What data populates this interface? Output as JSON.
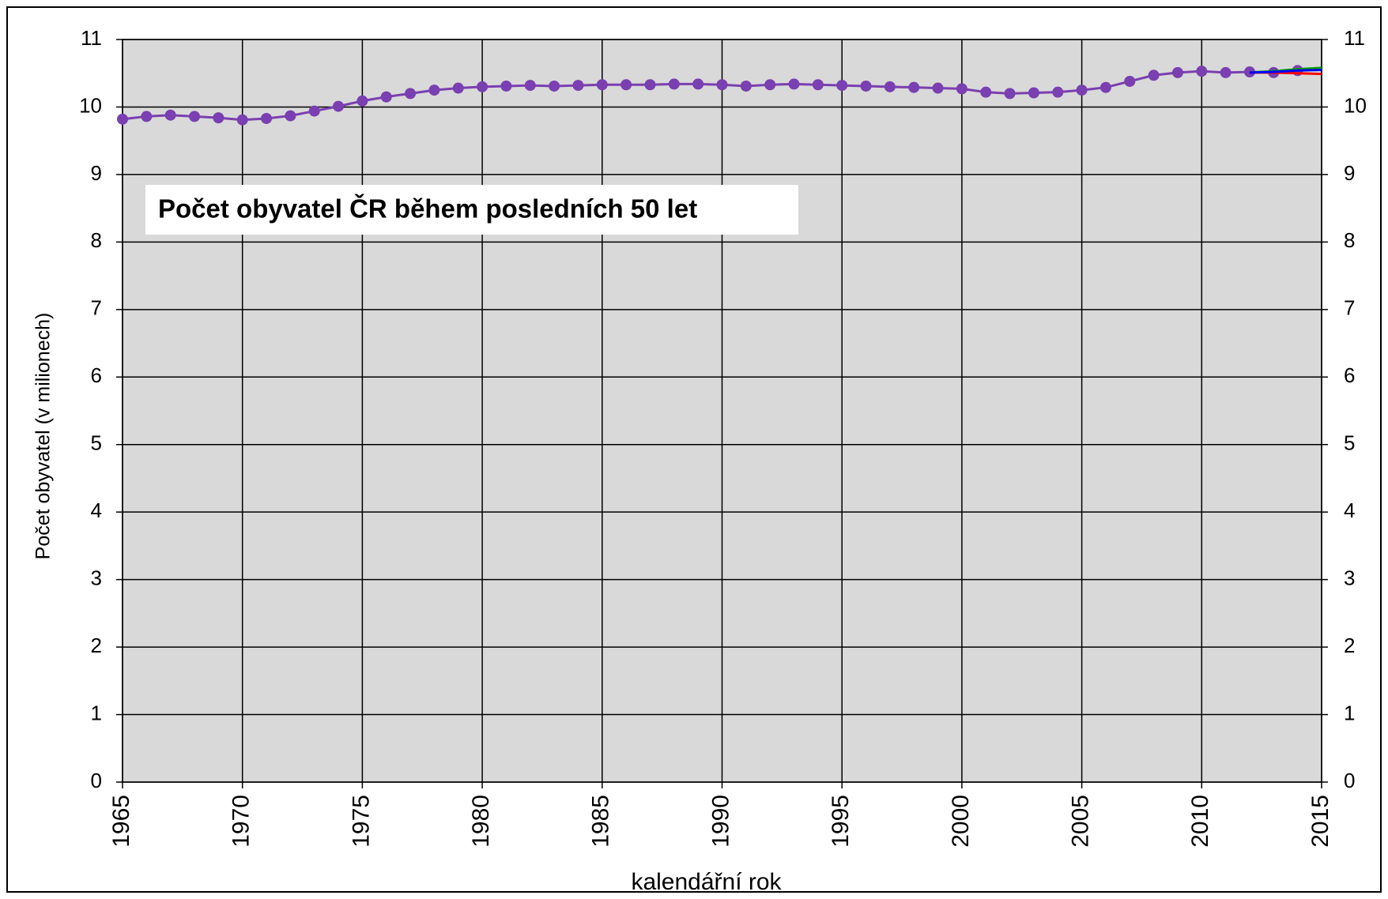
{
  "chart_data": {
    "type": "line",
    "title": "Počet obyvatel ČR během posledních 50 let",
    "x_label": "kalendářní rok",
    "y_label": "Počet obyvatel  (v milionech)",
    "series": [
      {
        "color": "#7a3fb0",
        "markers": true,
        "x": [
          1965,
          1966,
          1967,
          1968,
          1969,
          1970,
          1971,
          1972,
          1973,
          1974,
          1975,
          1976,
          1977,
          1978,
          1979,
          1980,
          1981,
          1982,
          1983,
          1984,
          1985,
          1986,
          1987,
          1988,
          1989,
          1990,
          1991,
          1992,
          1993,
          1994,
          1995,
          1996,
          1997,
          1998,
          1999,
          2000,
          2001,
          2002,
          2003,
          2004,
          2005,
          2006,
          2007,
          2008,
          2009,
          2010,
          2011,
          2012,
          2013,
          2014
        ],
        "values": [
          9.82,
          9.86,
          9.88,
          9.86,
          9.84,
          9.81,
          9.83,
          9.87,
          9.94,
          10.01,
          10.09,
          10.15,
          10.2,
          10.25,
          10.28,
          10.3,
          10.31,
          10.32,
          10.31,
          10.32,
          10.33,
          10.33,
          10.33,
          10.34,
          10.34,
          10.33,
          10.31,
          10.33,
          10.34,
          10.33,
          10.32,
          10.31,
          10.3,
          10.29,
          10.28,
          10.27,
          10.22,
          10.2,
          10.21,
          10.22,
          10.25,
          10.29,
          10.38,
          10.47,
          10.51,
          10.53,
          10.51,
          10.52,
          10.51,
          10.54
        ]
      },
      {
        "color": "#ff0000",
        "markers": false,
        "x": [
          2012,
          2013,
          2014,
          2015
        ],
        "values": [
          10.51,
          10.51,
          10.5,
          10.49
        ]
      },
      {
        "color": "#00a000",
        "markers": false,
        "x": [
          2012,
          2013,
          2014,
          2015
        ],
        "values": [
          10.51,
          10.53,
          10.56,
          10.58
        ]
      },
      {
        "color": "#0000ff",
        "markers": false,
        "x": [
          2012,
          2013,
          2014,
          2015
        ],
        "values": [
          10.51,
          10.52,
          10.54,
          10.55
        ]
      }
    ],
    "xlim": [
      1965,
      2015
    ],
    "xticks": [
      1965,
      1970,
      1975,
      1980,
      1985,
      1990,
      1995,
      2000,
      2005,
      2010,
      2015
    ],
    "ylim": [
      0,
      11
    ],
    "yticks": [
      0,
      1,
      2,
      3,
      4,
      5,
      6,
      7,
      8,
      9,
      10,
      11
    ],
    "y2lim": [
      0,
      11
    ],
    "y2ticks": [
      0,
      1,
      2,
      3,
      4,
      5,
      6,
      7,
      8,
      9,
      10,
      11
    ],
    "grid": true
  }
}
